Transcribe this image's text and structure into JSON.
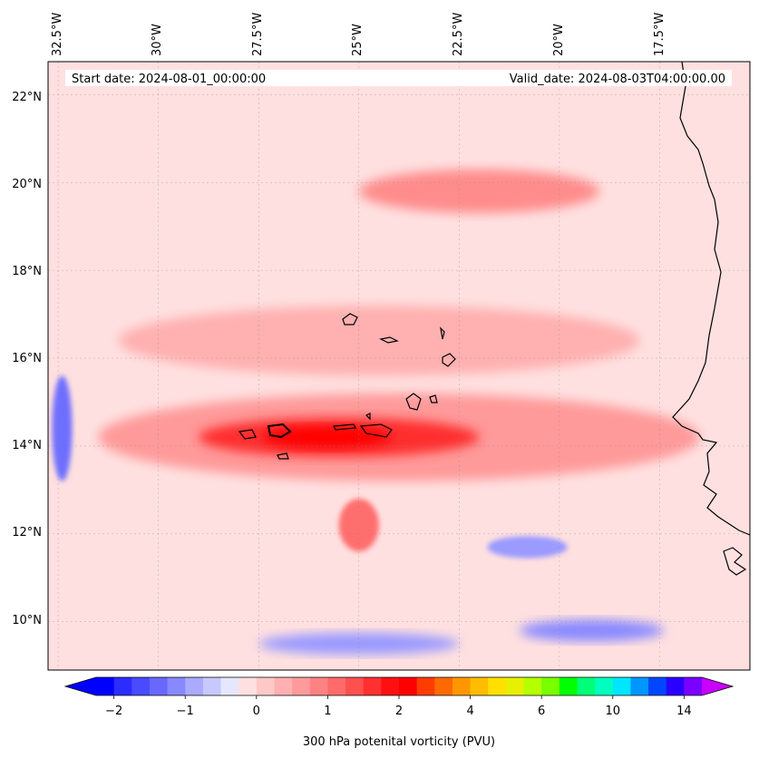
{
  "map": {
    "header_left": "Start date: 2024-08-01_00:00:00",
    "header_right": "Valid_date: 2024-08-03T04:00:00.00",
    "lon_labels": [
      "32.5°W",
      "30°W",
      "27.5°W",
      "25°W",
      "22.5°W",
      "20°W",
      "17.5°W"
    ],
    "lat_labels": [
      "22°N",
      "20°N",
      "18°N",
      "16°N",
      "14°N",
      "12°N",
      "10°N"
    ],
    "extent": {
      "lon_min": -32.75,
      "lon_max": -15.25,
      "lat_min": 8.9,
      "lat_max": 22.75
    },
    "background_color": "#ffe0e0",
    "regions": [
      {
        "name": "equatorial-band",
        "lon": -24.0,
        "lat": 14.2,
        "rx": 7.5,
        "ry": 1.0,
        "color": "#ff9a9a"
      },
      {
        "name": "equatorial-core",
        "lon": -25.5,
        "lat": 14.2,
        "rx": 3.5,
        "ry": 0.45,
        "color": "#ff2e2e"
      },
      {
        "name": "equatorial-max",
        "lon": -25.8,
        "lat": 14.2,
        "rx": 1.6,
        "ry": 0.25,
        "color": "#ff0000"
      },
      {
        "name": "diagonal-band",
        "lon": -24.5,
        "lat": 16.4,
        "rx": 6.5,
        "ry": 0.8,
        "color": "#ffb0b0"
      },
      {
        "name": "northern-filament",
        "lon": -22.0,
        "lat": 19.8,
        "rx": 3.0,
        "ry": 0.5,
        "color": "#ff8c8c"
      },
      {
        "name": "southern-spot",
        "lon": -25.0,
        "lat": 12.2,
        "rx": 0.5,
        "ry": 0.6,
        "color": "#ff6e6e"
      },
      {
        "name": "western-low",
        "lon": -32.4,
        "lat": 14.4,
        "rx": 0.25,
        "ry": 1.2,
        "color": "#6e6eff"
      },
      {
        "name": "southern-low-1",
        "lon": -25.0,
        "lat": 9.5,
        "rx": 2.5,
        "ry": 0.25,
        "color": "#9a9aff"
      },
      {
        "name": "southern-low-2",
        "lon": -19.2,
        "lat": 9.8,
        "rx": 1.8,
        "ry": 0.25,
        "color": "#8a8aff"
      },
      {
        "name": "southern-low-3",
        "lon": -20.8,
        "lat": 11.7,
        "rx": 1.0,
        "ry": 0.25,
        "color": "#9a9aff"
      }
    ],
    "coastline_color": "#000000"
  },
  "colorbar": {
    "label": "300 hPa potenital vorticity (PVU)",
    "tick_labels": [
      "−2",
      "−1",
      "0",
      "1",
      "2",
      "4",
      "6",
      "10",
      "14"
    ],
    "colors": [
      "#0000ff",
      "#2c2cff",
      "#4a4aff",
      "#6868ff",
      "#8888ff",
      "#aaaaff",
      "#c8c8ff",
      "#e6e6ff",
      "#ffe0e0",
      "#ffc8c8",
      "#ffb0b0",
      "#ff9a9a",
      "#ff8282",
      "#ff6a6a",
      "#ff5050",
      "#ff3030",
      "#ff1010",
      "#ff0000",
      "#ff3c00",
      "#ff6a00",
      "#ff9600",
      "#ffbc00",
      "#ffe000",
      "#e6f000",
      "#b4ff00",
      "#78ff00",
      "#00ff00",
      "#00ff78",
      "#00ffbe",
      "#00e6ff",
      "#0096ff",
      "#0046ff",
      "#2a00ff",
      "#7a00ff"
    ],
    "under_color": "#0000ff",
    "over_color": "#c800ff"
  }
}
